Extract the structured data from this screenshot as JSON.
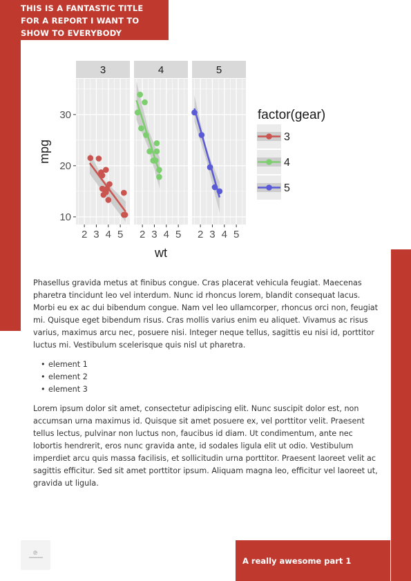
{
  "report": {
    "title_lines": [
      "THIS IS A FANTASTIC TITLE",
      "FOR A REPORT I WANT TO",
      "SHOW TO EVERYBODY"
    ],
    "footer_label": "A really awesome part 1",
    "paragraph_1": "Phasellus gravida metus at finibus congue. Cras placerat vehicula feugiat. Maecenas pharetra tincidunt leo vel interdum. Nunc id rhoncus lorem, blandit consequat lacus. Morbi eu ex ac dui bibendum congue. Nam vel leo ullamcorper, rhoncus orci non, feugiat mi. Quisque eget bibendum risus. Cras mollis varius enim eu aliquet. Vivamus ac risus varius, maximus arcu nec, posuere nisi. Integer neque tellus, sagittis eu nisi id, porttitor luctus mi. Vestibulum scelerisque quis nisl ut pharetra.",
    "list_items": [
      "element 1",
      "element 2",
      "element 3"
    ],
    "paragraph_2": "Lorem ipsum dolor sit amet, consectetur adipiscing elit. Nunc suscipit dolor est, non accumsan urna maximus id. Quisque sit amet posuere ex, vel porttitor velit. Praesent tellus lectus, pulvinar non luctus non, faucibus id diam. Ut condimentum, ante nec lobortis hendrerit, eros nunc gravida ante, id sodales ligula elit ut odio. Vestibulum imperdiet arcu quis massa facilisis, et sollicitudin urna porttitor. Praesent laoreet velit ac sagittis efficitur. Sed sit amet porttitor ipsum. Aliquam magna leo, efficitur vel laoreet ut, gravida ut ligula.",
    "accent_color": "#c0392f",
    "logo_icon": "company-logo-icon"
  },
  "chart_data": {
    "type": "scatter",
    "title": "",
    "xlabel": "wt",
    "ylabel": "mpg",
    "xlim": [
      1.3,
      5.8
    ],
    "ylim": [
      8.5,
      37
    ],
    "x_ticks": [
      2,
      3,
      4,
      5
    ],
    "y_ticks": [
      10,
      20,
      30
    ],
    "legend_title": "factor(gear)",
    "legend_position": "right",
    "grid": true,
    "facets": [
      {
        "label": "3",
        "color": "#c95450",
        "points": [
          [
            2.5,
            21.5
          ],
          [
            3.2,
            21.4
          ],
          [
            3.4,
            18.7
          ],
          [
            3.5,
            18.1
          ],
          [
            3.6,
            14.3
          ],
          [
            3.8,
            19.2
          ],
          [
            3.7,
            15.2
          ],
          [
            3.9,
            15.5
          ],
          [
            3.5,
            15.5
          ],
          [
            3.8,
            15.2
          ],
          [
            4.1,
            16.4
          ],
          [
            4.0,
            13.3
          ],
          [
            3.8,
            14.8
          ],
          [
            5.3,
            10.4
          ],
          [
            5.4,
            10.4
          ],
          [
            5.3,
            14.7
          ]
        ],
        "trend": [
          [
            2.45,
            20.5
          ],
          [
            5.45,
            11.0
          ]
        ],
        "band_top": [
          [
            2.45,
            22.6
          ],
          [
            3.6,
            17.3
          ],
          [
            5.45,
            13.0
          ]
        ],
        "band_bottom": [
          [
            2.45,
            18.4
          ],
          [
            3.6,
            14.7
          ],
          [
            5.45,
            9.0
          ]
        ]
      },
      {
        "label": "4",
        "color": "#7cce6e",
        "points": [
          [
            1.6,
            30.4
          ],
          [
            1.8,
            33.9
          ],
          [
            2.2,
            32.4
          ],
          [
            1.9,
            27.3
          ],
          [
            2.3,
            26.0
          ],
          [
            2.6,
            22.8
          ],
          [
            2.9,
            21.0
          ],
          [
            3.1,
            21.0
          ],
          [
            3.2,
            24.4
          ],
          [
            3.2,
            22.8
          ],
          [
            3.4,
            19.2
          ],
          [
            3.4,
            17.8
          ]
        ],
        "trend": [
          [
            1.5,
            32.8
          ],
          [
            3.45,
            18.5
          ]
        ],
        "band_top": [
          [
            1.5,
            36.5
          ],
          [
            2.5,
            27.0
          ],
          [
            3.45,
            21.5
          ]
        ],
        "band_bottom": [
          [
            1.5,
            29.0
          ],
          [
            2.5,
            23.5
          ],
          [
            3.45,
            15.5
          ]
        ]
      },
      {
        "label": "5",
        "color": "#5a5ad6",
        "points": [
          [
            1.5,
            30.4
          ],
          [
            2.1,
            26.0
          ],
          [
            2.8,
            19.7
          ],
          [
            3.2,
            15.8
          ],
          [
            3.6,
            15.0
          ]
        ],
        "trend": [
          [
            1.5,
            31.2
          ],
          [
            3.6,
            13.8
          ]
        ],
        "band_top": [
          [
            1.5,
            33.8
          ],
          [
            2.5,
            23.2
          ],
          [
            3.6,
            16.8
          ]
        ],
        "band_bottom": [
          [
            1.5,
            28.6
          ],
          [
            2.5,
            21.0
          ],
          [
            3.6,
            10.8
          ]
        ]
      }
    ]
  }
}
